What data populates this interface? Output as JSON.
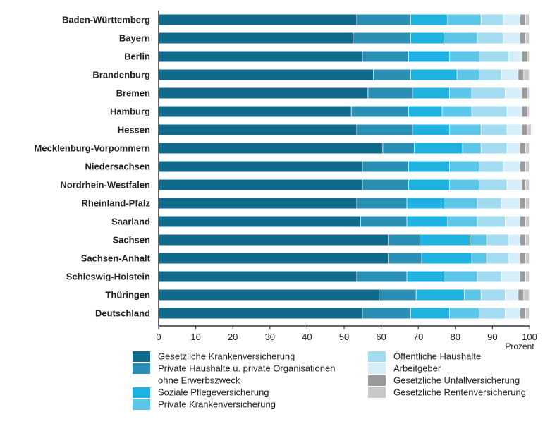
{
  "chart_data": {
    "type": "bar",
    "orientation": "horizontal",
    "stacked": true,
    "categories": [
      "Baden-Württemberg",
      "Bayern",
      "Berlin",
      "Brandenburg",
      "Bremen",
      "Hamburg",
      "Hessen",
      "Mecklenburg-Vorpommern",
      "Niedersachsen",
      "Nordrhein-Westfalen",
      "Rheinland-Pfalz",
      "Saarland",
      "Sachsen",
      "Sachsen-Anhalt",
      "Schleswig-Holstein",
      "Thüringen",
      "Deutschland"
    ],
    "series": [
      {
        "name": "Gesetzliche Krankenversicherung",
        "color": "#0f6a8b",
        "values": [
          53.5,
          52.5,
          55.0,
          58.0,
          56.5,
          52.0,
          53.5,
          60.5,
          55.0,
          55.0,
          53.5,
          54.5,
          62.0,
          62.0,
          53.5,
          59.5,
          55.0
        ]
      },
      {
        "name": "Private Haushalte u. private Organisationen ohne Erwerbszweck",
        "color": "#2b8fb5",
        "values": [
          14.5,
          15.5,
          12.5,
          10.0,
          12.0,
          15.5,
          15.0,
          8.5,
          12.5,
          12.5,
          13.5,
          12.5,
          8.5,
          9.0,
          13.5,
          10.0,
          13.0
        ]
      },
      {
        "name": "Soziale Pflegeversicherung",
        "color": "#1fb1e0",
        "values": [
          10.0,
          9.0,
          11.0,
          12.5,
          10.0,
          9.0,
          10.0,
          13.0,
          11.0,
          11.0,
          10.0,
          11.0,
          13.5,
          13.5,
          10.0,
          13.0,
          10.5
        ]
      },
      {
        "name": "Private Krankenversicherung",
        "color": "#5cc6e9",
        "values": [
          9.0,
          9.0,
          8.0,
          6.0,
          6.0,
          8.0,
          8.5,
          5.0,
          8.0,
          8.0,
          9.0,
          8.0,
          4.5,
          4.0,
          9.0,
          4.5,
          8.0
        ]
      },
      {
        "name": "Öffentliche Haushalte",
        "color": "#a3dcf1",
        "values": [
          6.0,
          7.0,
          8.0,
          6.0,
          9.0,
          9.5,
          7.0,
          7.0,
          6.5,
          7.5,
          6.5,
          7.5,
          6.0,
          6.0,
          6.5,
          6.5,
          7.0
        ]
      },
      {
        "name": "Arbeitgeber",
        "color": "#d5eef9",
        "values": [
          4.5,
          4.5,
          3.5,
          4.5,
          4.5,
          4.0,
          4.0,
          3.5,
          4.5,
          4.0,
          5.0,
          4.0,
          3.0,
          3.0,
          5.0,
          3.5,
          4.0
        ]
      },
      {
        "name": "Gesetzliche Unfallversicherung",
        "color": "#9a9a9a",
        "values": [
          1.5,
          1.5,
          1.5,
          1.5,
          1.5,
          1.5,
          1.5,
          1.5,
          1.5,
          1.0,
          1.5,
          1.5,
          1.5,
          1.5,
          1.5,
          1.5,
          1.5
        ]
      },
      {
        "name": "Gesetzliche Rentenversicherung",
        "color": "#c8c8c8",
        "values": [
          1.0,
          1.0,
          0.5,
          1.5,
          0.5,
          0.5,
          1.0,
          1.0,
          1.0,
          1.0,
          1.0,
          1.0,
          1.0,
          1.0,
          1.0,
          1.5,
          1.0
        ]
      }
    ],
    "xlim": [
      0,
      100
    ],
    "xticks": [
      "0",
      "10",
      "20",
      "30",
      "40",
      "50",
      "60",
      "70",
      "80",
      "90",
      "100"
    ],
    "xunit": "Prozent",
    "legend_position": "bottom",
    "grid": false
  }
}
